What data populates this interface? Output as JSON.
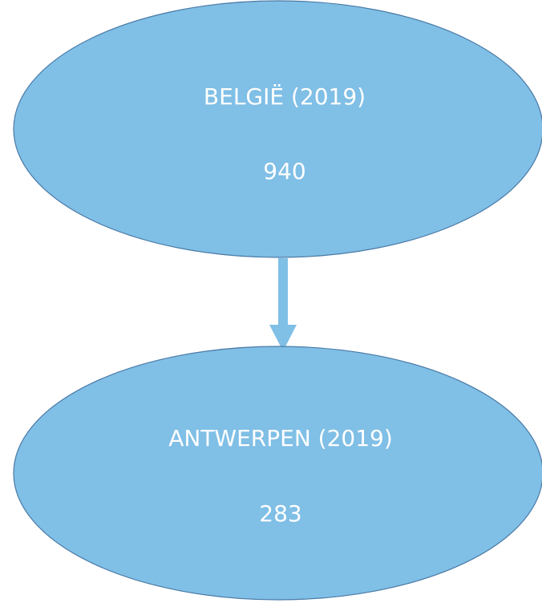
{
  "nodes": [
    {
      "label": "BELGIË (2019)",
      "value": 940
    },
    {
      "label": "ANTWERPEN (2019)",
      "value": 283
    }
  ]
}
